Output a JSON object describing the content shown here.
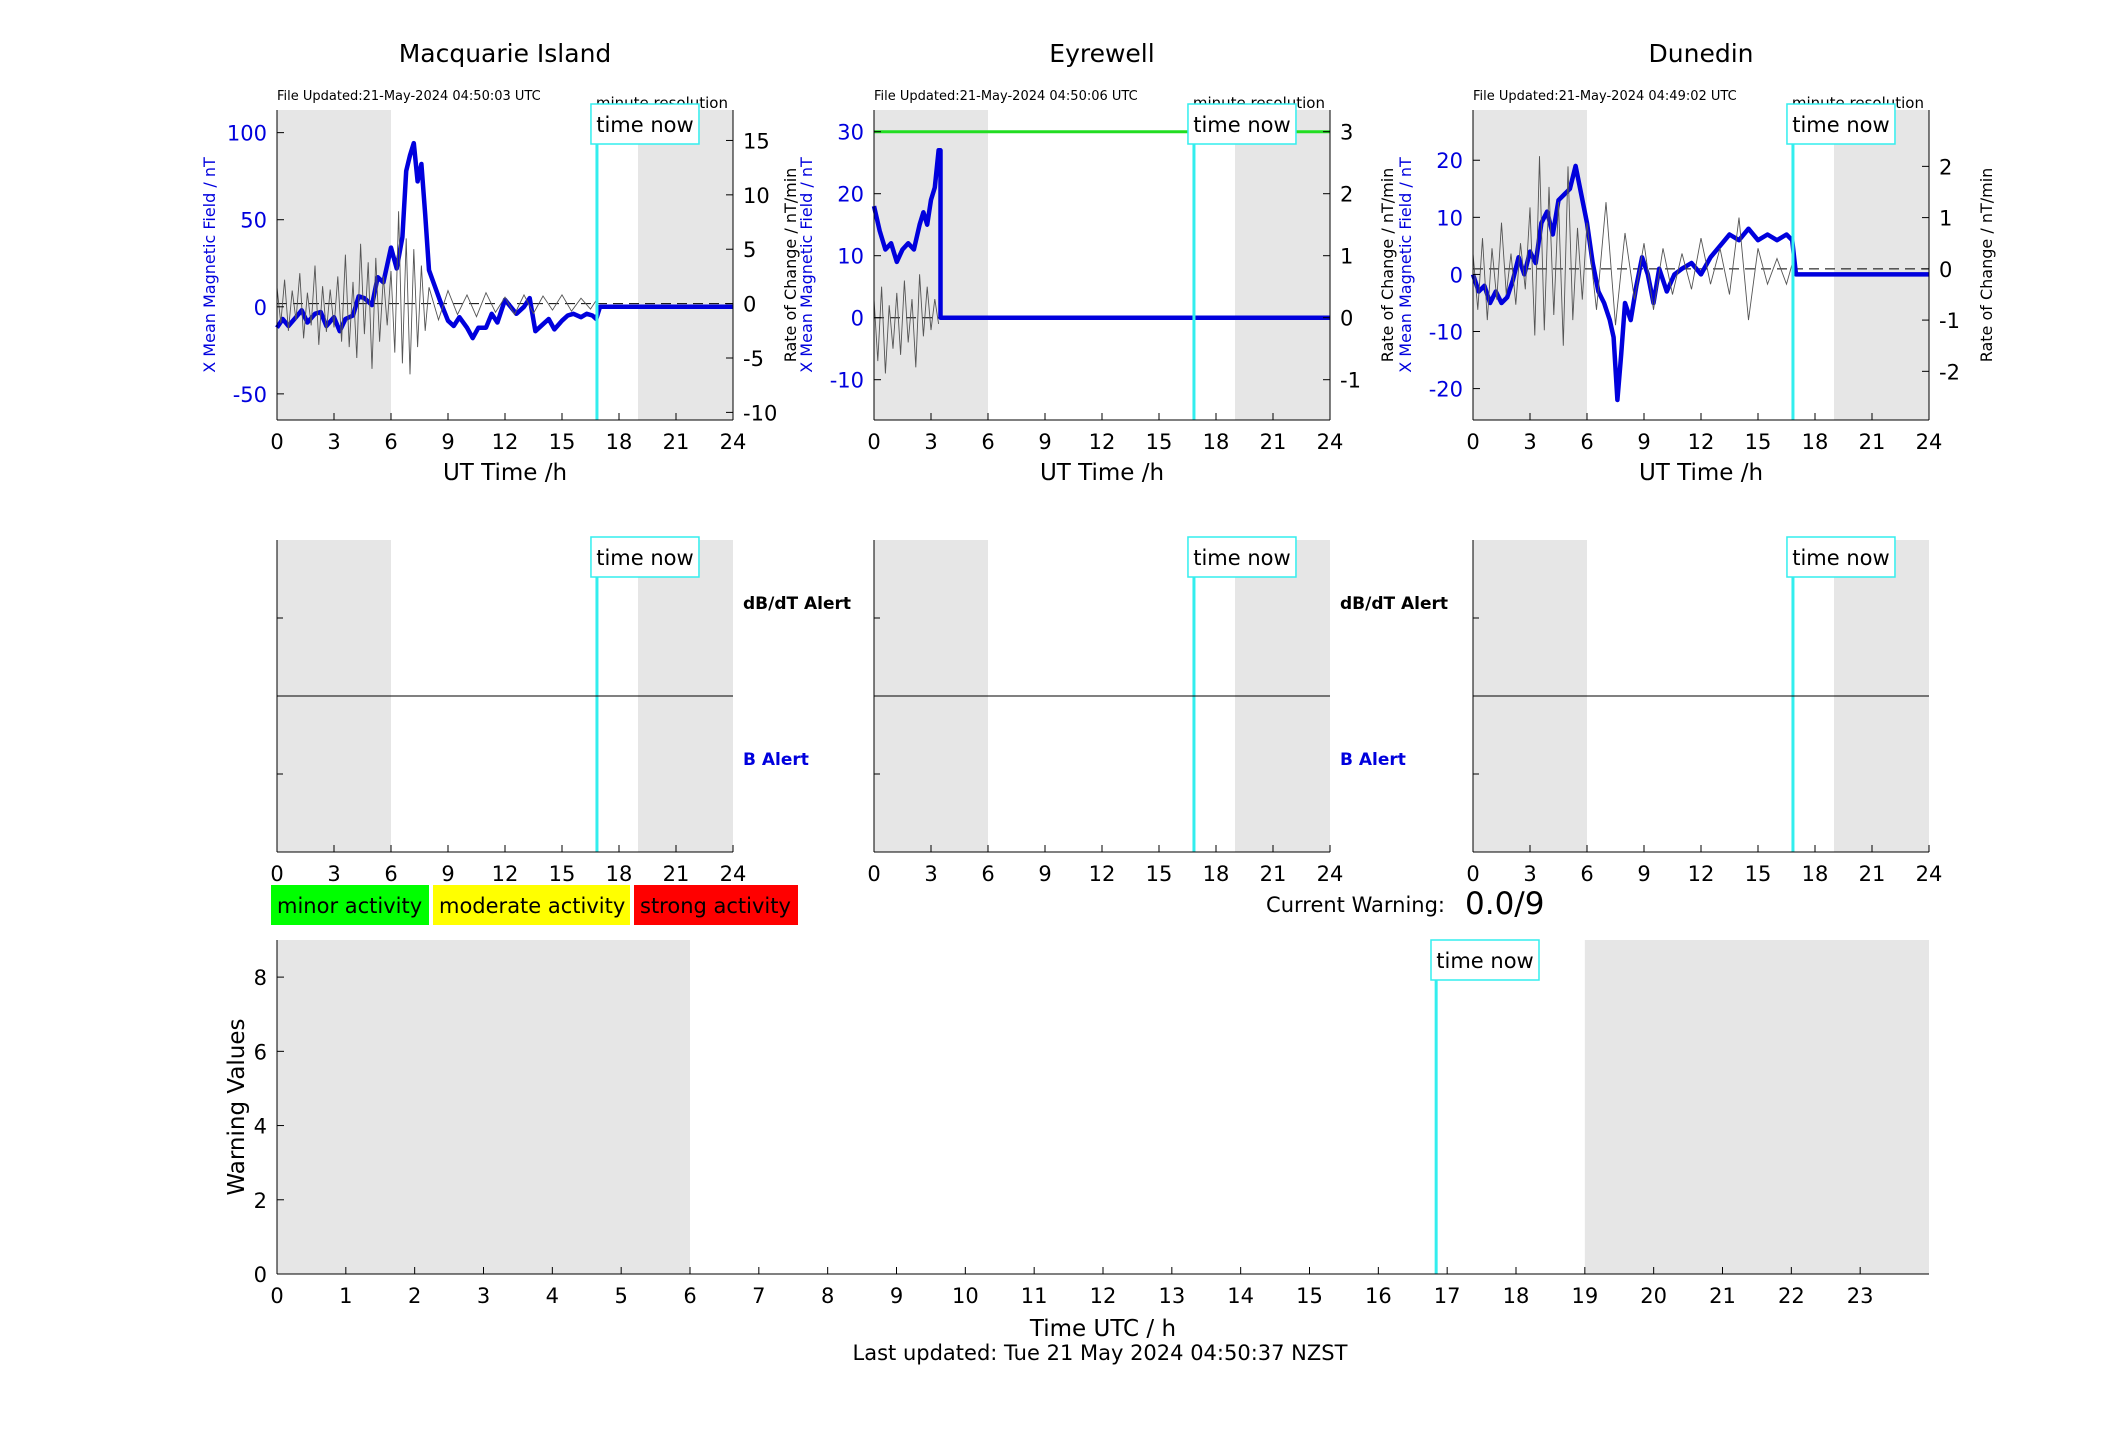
{
  "page": {
    "last_updated": "Last updated: Tue 21 May 2024 04:50:37 NZST",
    "time_now_label": "time now",
    "time_now_hour": 16.84,
    "night_shading_hours": [
      [
        0,
        6
      ],
      [
        19,
        24
      ]
    ],
    "colors": {
      "mag_line": "#0000dd",
      "rate_line": "#555555",
      "time_now": "#33eeee",
      "night_shade": "#e6e6e6",
      "eyrewell_green_line": "#22dd22"
    }
  },
  "legend": {
    "items": [
      {
        "label": "minor activity",
        "color": "#00ff00"
      },
      {
        "label": "moderate activity",
        "color": "#ffff00"
      },
      {
        "label": "strong activity",
        "color": "#ff0000"
      }
    ]
  },
  "current_warning": {
    "label": "Current Warning:",
    "value": "0.0/9"
  },
  "alert_labels": {
    "dbdt": "dB/dT Alert",
    "b": "B Alert"
  },
  "chart_data": [
    {
      "type": "line",
      "title": "Macquarie Island",
      "file_updated": "File Updated:21-May-2024 04:50:03 UTC",
      "resolution_label": "minute resolution",
      "xlabel": "UT Time /h",
      "ylabel_left": "X Mean Magnetic Field / nT",
      "ylabel_right": "Rate of Change / nT/min",
      "xlim": [
        0,
        24
      ],
      "xticks": [
        0,
        3,
        6,
        9,
        12,
        15,
        18,
        21,
        24
      ],
      "ylim_left": [
        -65,
        113
      ],
      "yticks_left": [
        -50,
        0,
        50,
        100
      ],
      "ylim_right": [
        -10.7,
        17.8
      ],
      "yticks_right": [
        -10,
        -5,
        0,
        5,
        10,
        15
      ],
      "series": [
        {
          "axis": "left",
          "x": [
            0,
            0.3,
            0.6,
            1,
            1.3,
            1.6,
            2,
            2.3,
            2.6,
            3,
            3.3,
            3.6,
            4,
            4.3,
            4.6,
            5,
            5.3,
            5.6,
            6,
            6.3,
            6.6,
            6.8,
            7,
            7.2,
            7.4,
            7.6,
            7.8,
            8,
            8.3,
            8.6,
            9,
            9.3,
            9.6,
            10,
            10.3,
            10.6,
            11,
            11.3,
            11.6,
            12,
            12.3,
            12.6,
            13,
            13.3,
            13.6,
            14,
            14.3,
            14.6,
            15,
            15.3,
            15.6,
            16,
            16.3,
            16.6,
            16.8,
            17,
            24
          ],
          "values": [
            -12,
            -7,
            -11,
            -6,
            -2,
            -9,
            -4,
            -3,
            -11,
            -6,
            -14,
            -7,
            -5,
            6,
            5,
            1,
            17,
            14,
            34,
            22,
            40,
            78,
            87,
            94,
            72,
            82,
            53,
            21,
            12,
            3,
            -8,
            -11,
            -6,
            -12,
            -18,
            -12,
            -12,
            -4,
            -9,
            4,
            0,
            -4,
            0,
            5,
            -14,
            -10,
            -7,
            -13,
            -8,
            -5,
            -4,
            -6,
            -4,
            -5,
            -7,
            0,
            0
          ]
        },
        {
          "axis": "right",
          "x": [
            0,
            0.2,
            0.4,
            0.6,
            0.8,
            1,
            1.2,
            1.4,
            1.6,
            1.8,
            2,
            2.2,
            2.4,
            2.6,
            2.8,
            3,
            3.2,
            3.4,
            3.6,
            3.8,
            4,
            4.2,
            4.4,
            4.6,
            4.8,
            5,
            5.2,
            5.4,
            5.6,
            5.8,
            6,
            6.2,
            6.4,
            6.6,
            6.8,
            7,
            7.2,
            7.4,
            7.6,
            7.8,
            8,
            8.5,
            9,
            9.5,
            10,
            10.5,
            11,
            11.5,
            12,
            12.5,
            13,
            13.5,
            14,
            14.5,
            15,
            15.5,
            16,
            16.5,
            16.8
          ],
          "values": [
            1.5,
            -1.8,
            2.2,
            -2.5,
            1.2,
            -1.5,
            2.8,
            -3.2,
            1.0,
            -2.0,
            3.5,
            -3.8,
            1.6,
            -2.6,
            1.3,
            -2.2,
            2.5,
            -3.5,
            4.5,
            -4.0,
            2.0,
            -5.0,
            5.5,
            -2.8,
            3.8,
            -6.0,
            4.2,
            -3.5,
            2.5,
            -2.0,
            3.0,
            -4.5,
            8.5,
            -5.5,
            6.0,
            -6.5,
            5.0,
            -4.0,
            3.5,
            -2.5,
            1.5,
            -1.5,
            1.2,
            -1.0,
            0.8,
            -1.2,
            1.0,
            -0.8,
            0.6,
            -1.0,
            0.8,
            -0.9,
            0.7,
            -0.6,
            0.8,
            -0.7,
            0.5,
            -0.5,
            0.3
          ]
        }
      ]
    },
    {
      "type": "line",
      "title": "Eyrewell",
      "file_updated": "File Updated:21-May-2024 04:50:06 UTC",
      "resolution_label": "minute resolution",
      "xlabel": "UT Time /h",
      "ylabel_left": "X Mean Magnetic Field / nT",
      "ylabel_right": "Rate of Change / nT/min",
      "xlim": [
        0,
        24
      ],
      "xticks": [
        0,
        3,
        6,
        9,
        12,
        15,
        18,
        21,
        24
      ],
      "ylim_left": [
        -16.5,
        33.5
      ],
      "yticks_left": [
        -10,
        0,
        10,
        20,
        30
      ],
      "ylim_right": [
        -1.65,
        3.35
      ],
      "yticks_right": [
        -1,
        0,
        1,
        2,
        3
      ],
      "series": [
        {
          "axis": "left",
          "x": [
            0,
            0.3,
            0.6,
            0.9,
            1.2,
            1.5,
            1.8,
            2.1,
            2.4,
            2.6,
            2.8,
            3.0,
            3.2,
            3.4,
            3.5,
            3.5,
            24
          ],
          "values": [
            18,
            14,
            11,
            12,
            9,
            11,
            12,
            11,
            15,
            17,
            15,
            19,
            21,
            27,
            27,
            0,
            0
          ]
        },
        {
          "axis": "right",
          "x": [
            0,
            0.2,
            0.4,
            0.6,
            0.8,
            1.0,
            1.2,
            1.4,
            1.6,
            1.8,
            2.0,
            2.2,
            2.4,
            2.6,
            2.8,
            3.0,
            3.2,
            3.4
          ],
          "values": [
            0.3,
            -0.7,
            0.5,
            -0.9,
            0.2,
            -0.5,
            0.4,
            -0.6,
            0.6,
            -0.4,
            0.3,
            -0.8,
            0.7,
            -0.3,
            0.5,
            -0.2,
            0.3,
            -0.1
          ]
        },
        {
          "axis": "left",
          "name_hidden": true,
          "x": [
            0,
            24
          ],
          "values": [
            30,
            30
          ]
        }
      ]
    },
    {
      "type": "line",
      "title": "Dunedin",
      "file_updated": "File Updated:21-May-2024 04:49:02 UTC",
      "resolution_label": "minute resolution",
      "xlabel": "UT Time /h",
      "ylabel_left": "X Mean Magnetic Field / nT",
      "ylabel_right": "Rate of Change / nT/min",
      "xlim": [
        0,
        24
      ],
      "xticks": [
        0,
        3,
        6,
        9,
        12,
        15,
        18,
        21,
        24
      ],
      "ylim_left": [
        -25.5,
        28.8
      ],
      "yticks_left": [
        -20,
        -10,
        0,
        10,
        20
      ],
      "ylim_right": [
        -2.95,
        3.1
      ],
      "yticks_right": [
        -2,
        -1,
        0,
        1,
        2
      ],
      "series": [
        {
          "axis": "left",
          "x": [
            0,
            0.3,
            0.6,
            0.9,
            1.2,
            1.5,
            1.8,
            2.1,
            2.4,
            2.7,
            3.0,
            3.3,
            3.6,
            3.9,
            4.2,
            4.5,
            4.8,
            5.1,
            5.4,
            5.7,
            6.0,
            6.3,
            6.6,
            6.9,
            7.2,
            7.4,
            7.6,
            7.8,
            8.0,
            8.3,
            8.6,
            8.9,
            9.2,
            9.5,
            9.8,
            10.2,
            10.6,
            11,
            11.5,
            12,
            12.5,
            13,
            13.5,
            14,
            14.5,
            15,
            15.5,
            16,
            16.5,
            16.8,
            17,
            24
          ],
          "values": [
            0,
            -3,
            -2,
            -5,
            -3,
            -5,
            -4,
            -1,
            3,
            0,
            4,
            2,
            9,
            11,
            7,
            13,
            14,
            15,
            19,
            14,
            9,
            2,
            -3,
            -5,
            -8,
            -11,
            -22,
            -14,
            -5,
            -8,
            -2,
            3,
            0,
            -5,
            1,
            -3,
            0,
            1,
            2,
            0,
            3,
            5,
            7,
            6,
            8,
            6,
            7,
            6,
            7,
            6,
            0,
            0
          ]
        },
        {
          "axis": "right",
          "x": [
            0,
            0.25,
            0.5,
            0.75,
            1.0,
            1.25,
            1.5,
            1.75,
            2.0,
            2.25,
            2.5,
            2.75,
            3.0,
            3.25,
            3.5,
            3.75,
            4.0,
            4.25,
            4.5,
            4.75,
            5.0,
            5.25,
            5.5,
            5.75,
            6.0,
            6.5,
            7.0,
            7.5,
            8.0,
            8.5,
            9.0,
            9.5,
            10,
            10.5,
            11,
            11.5,
            12,
            12.5,
            13,
            13.5,
            14,
            14.5,
            15,
            15.5,
            16,
            16.5,
            16.8
          ],
          "values": [
            0.3,
            -0.8,
            0.6,
            -1.0,
            0.4,
            -0.6,
            0.9,
            -0.5,
            0.3,
            -0.7,
            0.5,
            -0.4,
            1.2,
            -1.3,
            2.2,
            -1.2,
            1.6,
            -0.9,
            1.3,
            -1.5,
            2.0,
            -1.0,
            0.8,
            -0.6,
            0.9,
            -0.8,
            1.3,
            -1.1,
            0.7,
            -0.6,
            0.5,
            -0.8,
            0.4,
            -0.5,
            0.3,
            -0.4,
            0.6,
            -0.3,
            0.4,
            -0.5,
            1.0,
            -1.0,
            0.4,
            -0.3,
            0.2,
            -0.3,
            0.1
          ]
        }
      ]
    },
    {
      "type": "line",
      "title": "",
      "xlabel": "Time UTC / h",
      "ylabel": "Warning Values",
      "xlim": [
        0,
        24
      ],
      "xticks": [
        0,
        1,
        2,
        3,
        4,
        5,
        6,
        7,
        8,
        9,
        10,
        11,
        12,
        13,
        14,
        15,
        16,
        17,
        18,
        19,
        20,
        21,
        22,
        23
      ],
      "ylim": [
        0,
        9
      ],
      "yticks": [
        0,
        2,
        4,
        6,
        8
      ],
      "series": []
    }
  ]
}
